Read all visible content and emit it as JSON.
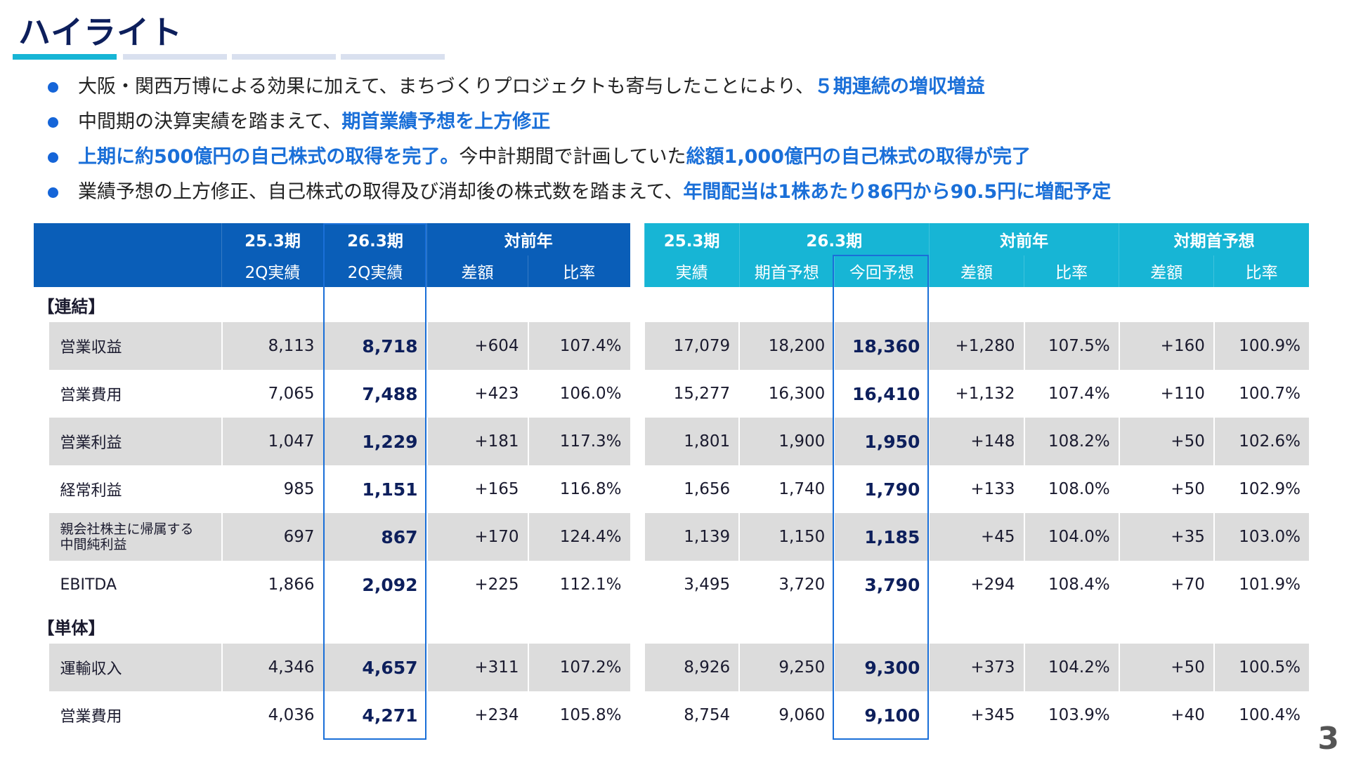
{
  "title": "ハイライト",
  "colors": {
    "accent": "#1a6fd8",
    "left_header": "#0a5eb8",
    "right_header": "#17b5d5",
    "row_shade": "#dcdcdc",
    "title": "#0d1f5c"
  },
  "bullets": [
    [
      {
        "t": "大阪・関西万博による効果に加えて、まちづくりプロジェクトも寄与したことにより、"
      },
      {
        "t": "５期連続の増収増益",
        "em": true
      }
    ],
    [
      {
        "t": "中間期の決算実績を踏まえて、"
      },
      {
        "t": "期首業績予想を上方修正",
        "em": true
      }
    ],
    [
      {
        "t": "上期に約500億円の自己株式の取得を完了。",
        "em": true
      },
      {
        "t": "今中計期間で計画していた"
      },
      {
        "t": "総額1,000億円の自己株式の取得が完了",
        "em": true
      }
    ],
    [
      {
        "t": "業績予想の上方修正、自己株式の取得及び消却後の株式数を踏まえて、"
      },
      {
        "t": "年間配当は1株あたり86円から90.5円に増配予定",
        "em": true
      }
    ]
  ],
  "left_table": {
    "header_top": [
      "",
      "25.3期",
      "26.3期",
      "対前年"
    ],
    "header_sub": [
      "",
      "2Q実績",
      "2Q実績",
      "差額",
      "比率"
    ]
  },
  "right_table": {
    "header_top": [
      "25.3期",
      "26.3期",
      "対前年",
      "対期首予想"
    ],
    "header_sub": [
      "実績",
      "期首予想",
      "今回予想",
      "差額",
      "比率",
      "差額",
      "比率"
    ]
  },
  "sections": [
    {
      "label": "【連結】",
      "rows": [
        {
          "label": "営業収益",
          "left": [
            "8,113",
            "8,718",
            "+604",
            "107.4%"
          ],
          "right": [
            "17,079",
            "18,200",
            "18,360",
            "+1,280",
            "107.5%",
            "+160",
            "100.9%"
          ]
        },
        {
          "label": "営業費用",
          "left": [
            "7,065",
            "7,488",
            "+423",
            "106.0%"
          ],
          "right": [
            "15,277",
            "16,300",
            "16,410",
            "+1,132",
            "107.4%",
            "+110",
            "100.7%"
          ]
        },
        {
          "label": "営業利益",
          "left": [
            "1,047",
            "1,229",
            "+181",
            "117.3%"
          ],
          "right": [
            "1,801",
            "1,900",
            "1,950",
            "+148",
            "108.2%",
            "+50",
            "102.6%"
          ]
        },
        {
          "label": "経常利益",
          "left": [
            "985",
            "1,151",
            "+165",
            "116.8%"
          ],
          "right": [
            "1,656",
            "1,740",
            "1,790",
            "+133",
            "108.0%",
            "+50",
            "102.9%"
          ]
        },
        {
          "label": "親会社株主に帰属する\n中間純利益",
          "left": [
            "697",
            "867",
            "+170",
            "124.4%"
          ],
          "right": [
            "1,139",
            "1,150",
            "1,185",
            "+45",
            "104.0%",
            "+35",
            "103.0%"
          ]
        },
        {
          "label": "EBITDA",
          "left": [
            "1,866",
            "2,092",
            "+225",
            "112.1%"
          ],
          "right": [
            "3,495",
            "3,720",
            "3,790",
            "+294",
            "108.4%",
            "+70",
            "101.9%"
          ]
        }
      ]
    },
    {
      "label": "【単体】",
      "rows": [
        {
          "label": "運輸収入",
          "left": [
            "4,346",
            "4,657",
            "+311",
            "107.2%"
          ],
          "right": [
            "8,926",
            "9,250",
            "9,300",
            "+373",
            "104.2%",
            "+50",
            "100.5%"
          ]
        },
        {
          "label": "営業費用",
          "left": [
            "4,036",
            "4,271",
            "+234",
            "105.8%"
          ],
          "right": [
            "8,754",
            "9,060",
            "9,100",
            "+345",
            "103.9%",
            "+40",
            "100.4%"
          ]
        }
      ]
    }
  ],
  "page_number": "3"
}
